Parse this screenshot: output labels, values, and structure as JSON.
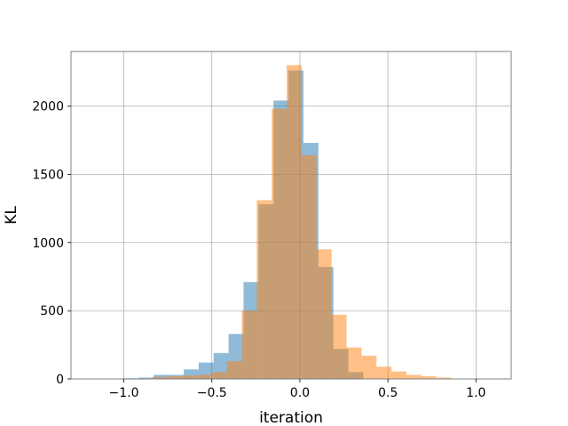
{
  "chart_data": {
    "type": "bar",
    "subtype": "overlapping-histogram",
    "title": "",
    "xlabel": "iteration",
    "ylabel": "KL",
    "xlim": [
      -1.3,
      1.2
    ],
    "ylim": [
      0,
      2400
    ],
    "xticks": [
      -1.0,
      -0.5,
      0.0,
      0.5,
      1.0
    ],
    "xtick_labels": [
      "−1.0",
      "−0.5",
      "0.0",
      "0.5",
      "1.0"
    ],
    "yticks": [
      0,
      500,
      1000,
      1500,
      2000
    ],
    "ytick_labels": [
      "0",
      "500",
      "1000",
      "1500",
      "2000"
    ],
    "grid": true,
    "legend": false,
    "series": [
      {
        "color": "#1f77b4",
        "opacity": 0.5,
        "bin_edges": [
          -1.0,
          -0.915,
          -0.83,
          -0.745,
          -0.66,
          -0.575,
          -0.49,
          -0.405,
          -0.32,
          -0.235,
          -0.15,
          -0.065,
          0.02,
          0.105,
          0.19,
          0.275,
          0.36
        ],
        "values": [
          5,
          10,
          30,
          30,
          70,
          120,
          190,
          330,
          710,
          1280,
          2040,
          2260,
          1730,
          820,
          220,
          50
        ]
      },
      {
        "color": "#ff7f0e",
        "opacity": 0.5,
        "bin_edges": [
          -0.84,
          -0.755,
          -0.67,
          -0.585,
          -0.5,
          -0.415,
          -0.33,
          -0.245,
          -0.16,
          -0.075,
          0.01,
          0.095,
          0.18,
          0.265,
          0.35,
          0.435,
          0.52,
          0.605,
          0.69,
          0.775,
          0.86
        ],
        "values": [
          15,
          20,
          25,
          30,
          50,
          130,
          500,
          1310,
          1980,
          2300,
          1640,
          950,
          470,
          230,
          170,
          90,
          55,
          30,
          20,
          10
        ]
      }
    ]
  }
}
